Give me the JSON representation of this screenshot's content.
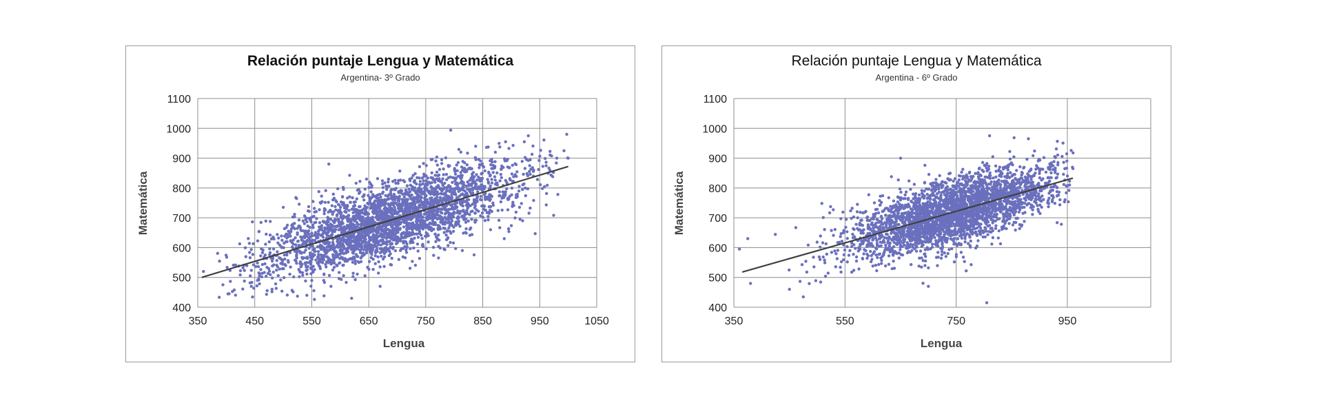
{
  "colors": {
    "points": "#6a70bd",
    "trend": "#404040",
    "grid": "#8c8c8c",
    "frame": "#9a9a9a"
  },
  "chart_data": [
    {
      "type": "scatter",
      "title": "Relación puntaje Lengua y Matemática",
      "subtitle": "Argentina- 3º Grado",
      "xlabel": "Lengua",
      "ylabel": "Matemática",
      "xlim": [
        350,
        1050
      ],
      "ylim": [
        400,
        1100
      ],
      "xticks": [
        350,
        450,
        550,
        650,
        750,
        850,
        950,
        1050
      ],
      "yticks": [
        400,
        500,
        600,
        700,
        800,
        900,
        1000,
        1100
      ],
      "trendline": {
        "x": [
          357,
          1000
        ],
        "y": [
          500,
          872
        ]
      },
      "cloud": {
        "n": 3000,
        "xmean": 690,
        "xsd": 115,
        "xmin": 370,
        "xmax": 1000,
        "slope": 0.58,
        "noise_sd": 62,
        "seed": 31
      },
      "points": [
        [
          405,
          445
        ],
        [
          360,
          520
        ],
        [
          455,
          490
        ],
        [
          470,
          645
        ],
        [
          580,
          880
        ],
        [
          890,
          955
        ],
        [
          930,
          975
        ],
        [
          620,
          430
        ],
        [
          670,
          470
        ],
        [
          920,
          690
        ],
        [
          980,
          900
        ],
        [
          1000,
          900
        ],
        [
          500,
          735
        ]
      ]
    },
    {
      "type": "scatter",
      "title": "Relación puntaje Lengua y Matemática",
      "subtitle": "Argentina - 6º Grado",
      "xlabel": "Lengua",
      "ylabel": "Matemática",
      "xlim": [
        350,
        1100
      ],
      "ylim": [
        400,
        1100
      ],
      "xticks": [
        350,
        550,
        750,
        950
      ],
      "yticks": [
        400,
        500,
        600,
        700,
        800,
        900,
        1000,
        1100
      ],
      "trendline": {
        "x": [
          365,
          960
        ],
        "y": [
          518,
          833
        ]
      },
      "cloud": {
        "n": 3000,
        "xmean": 745,
        "xsd": 95,
        "xmin": 365,
        "xmax": 965,
        "slope": 0.53,
        "noise_sd": 55,
        "seed": 77
      },
      "points": [
        [
          360,
          595
        ],
        [
          375,
          630
        ],
        [
          380,
          480
        ],
        [
          450,
          460
        ],
        [
          475,
          435
        ],
        [
          805,
          415
        ],
        [
          650,
          900
        ],
        [
          810,
          975
        ],
        [
          880,
          965
        ],
        [
          960,
          865
        ],
        [
          700,
          470
        ]
      ]
    }
  ]
}
